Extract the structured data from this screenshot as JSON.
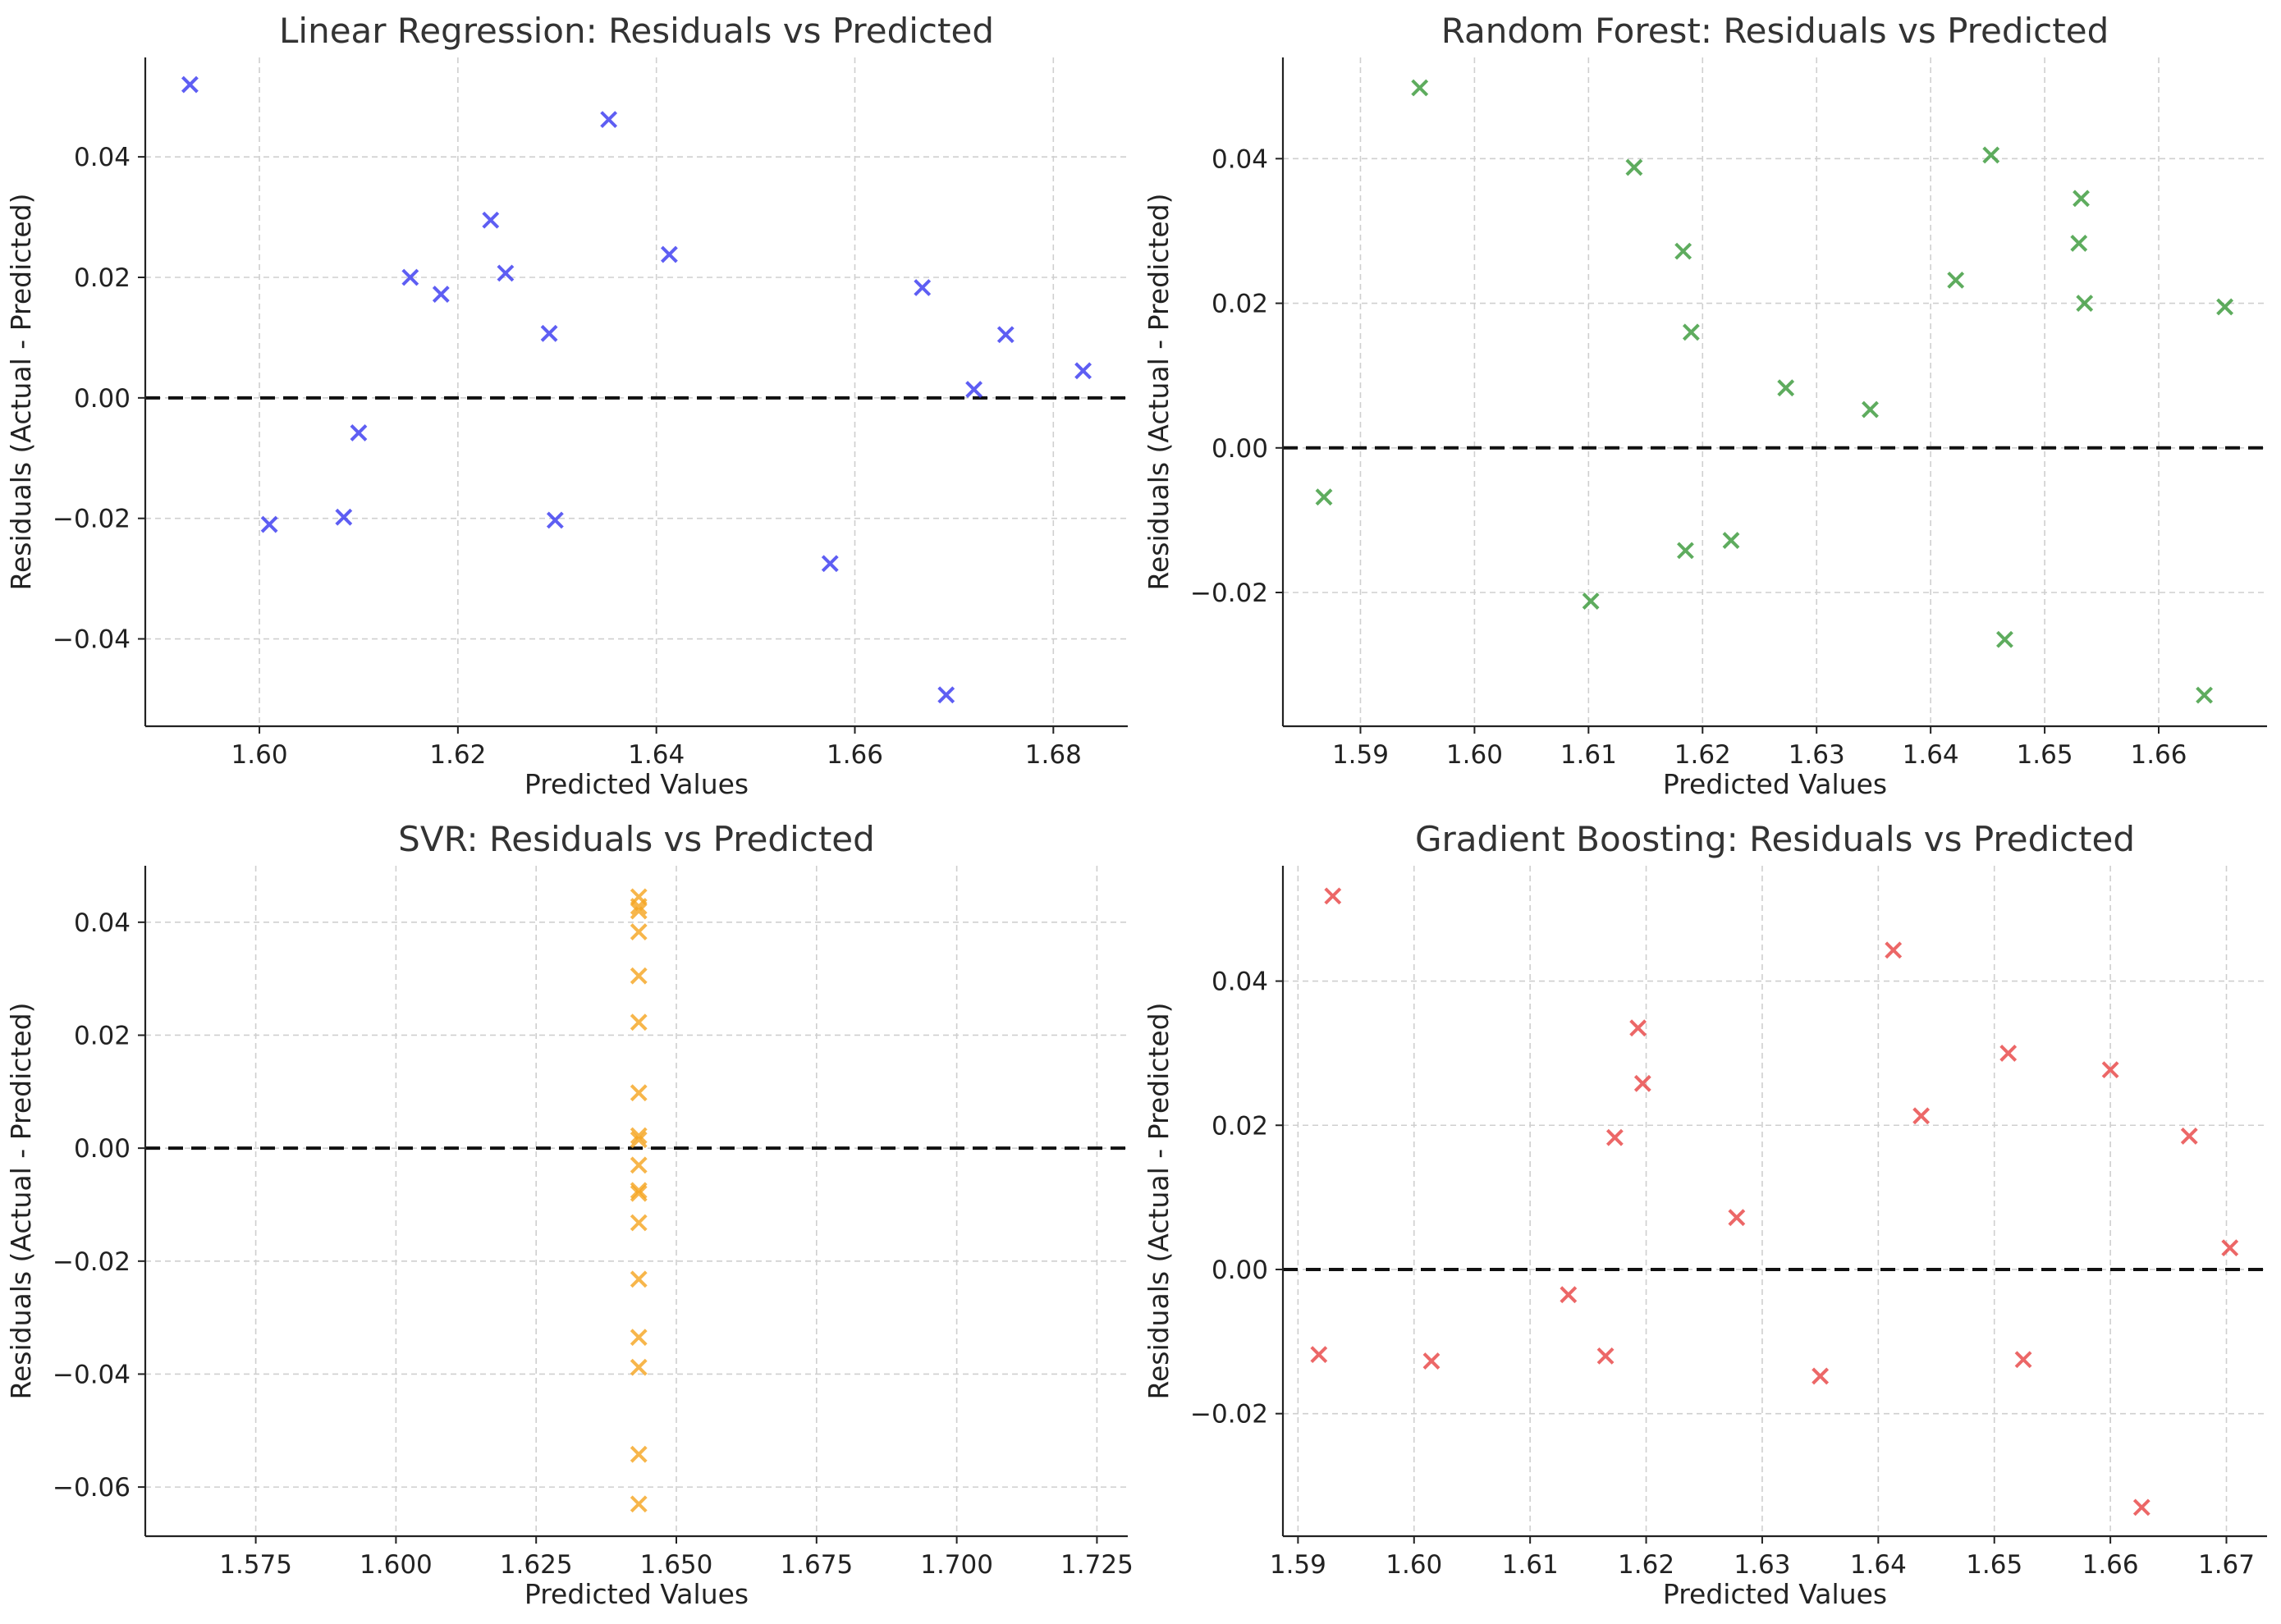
{
  "chart_data": [
    {
      "type": "scatter",
      "title": "Linear Regression: Residuals vs Predicted",
      "xlabel": "Predicted Values",
      "ylabel": "Residuals (Actual - Predicted)",
      "xlim": [
        1.5885,
        1.6875
      ],
      "ylim": [
        -0.0545,
        0.0565
      ],
      "xticks": [
        "1.60",
        "1.62",
        "1.64",
        "1.66",
        "1.68"
      ],
      "yticks": [
        "−0.04",
        "−0.02",
        "0.00",
        "0.02",
        "0.04"
      ],
      "grid": true,
      "color": "#3b3bf0",
      "marker": "x",
      "reference_line": 0,
      "points": [
        [
          1.593,
          0.052
        ],
        [
          1.601,
          -0.021
        ],
        [
          1.6085,
          -0.0198
        ],
        [
          1.61,
          -0.0058
        ],
        [
          1.6152,
          0.02
        ],
        [
          1.6183,
          0.0172
        ],
        [
          1.6233,
          0.0295
        ],
        [
          1.6248,
          0.0207
        ],
        [
          1.6292,
          0.0107
        ],
        [
          1.6298,
          -0.0203
        ],
        [
          1.6352,
          0.0462
        ],
        [
          1.6413,
          0.0238
        ],
        [
          1.6575,
          -0.0275
        ],
        [
          1.6668,
          0.0183
        ],
        [
          1.6692,
          -0.0493
        ],
        [
          1.672,
          0.0014
        ],
        [
          1.6752,
          0.0105
        ],
        [
          1.683,
          0.0045
        ]
      ]
    },
    {
      "type": "scatter",
      "title": "Random Forest: Residuals vs Predicted",
      "xlabel": "Predicted Values",
      "ylabel": "Residuals (Actual - Predicted)",
      "xlim": [
        1.5832,
        1.6695
      ],
      "ylim": [
        -0.0385,
        0.054
      ],
      "xticks": [
        "1.59",
        "1.60",
        "1.61",
        "1.62",
        "1.63",
        "1.64",
        "1.65",
        "1.66"
      ],
      "yticks": [
        "−0.02",
        "0.00",
        "0.02",
        "0.04"
      ],
      "grid": true,
      "color": "#3a9a3a",
      "marker": "x",
      "reference_line": 0,
      "points": [
        [
          1.5868,
          -0.0068
        ],
        [
          1.5952,
          0.0498
        ],
        [
          1.6102,
          -0.0212
        ],
        [
          1.614,
          0.0388
        ],
        [
          1.6183,
          0.0272
        ],
        [
          1.6185,
          -0.0142
        ],
        [
          1.619,
          0.016
        ],
        [
          1.6225,
          -0.0128
        ],
        [
          1.6273,
          0.0083
        ],
        [
          1.6347,
          0.0053
        ],
        [
          1.6422,
          0.0232
        ],
        [
          1.6453,
          0.0405
        ],
        [
          1.6465,
          -0.0265
        ],
        [
          1.653,
          0.0283
        ],
        [
          1.6532,
          0.0345
        ],
        [
          1.6535,
          0.02
        ],
        [
          1.664,
          -0.0342
        ],
        [
          1.6658,
          0.0195
        ]
      ]
    },
    {
      "type": "scatter",
      "title": "SVR: Residuals vs Predicted",
      "xlabel": "Predicted Values",
      "ylabel": "Residuals (Actual - Predicted)",
      "xlim": [
        1.5553,
        1.7305
      ],
      "ylim": [
        -0.0687,
        0.05
      ],
      "xticks": [
        "1.575",
        "1.600",
        "1.625",
        "1.650",
        "1.675",
        "1.700",
        "1.725"
      ],
      "yticks": [
        "−0.06",
        "−0.04",
        "−0.02",
        "0.00",
        "0.02",
        "0.04"
      ],
      "grid": true,
      "color": "#f5a623",
      "marker": "x",
      "reference_line": 0,
      "points": [
        [
          1.6433,
          0.0445
        ],
        [
          1.6433,
          0.0428
        ],
        [
          1.6433,
          0.042
        ],
        [
          1.6433,
          0.0383
        ],
        [
          1.6433,
          0.0305
        ],
        [
          1.6433,
          0.0223
        ],
        [
          1.6433,
          0.0098
        ],
        [
          1.6433,
          0.0022
        ],
        [
          1.6433,
          0.0015
        ],
        [
          1.6433,
          -0.003
        ],
        [
          1.6433,
          -0.0075
        ],
        [
          1.6433,
          -0.008
        ],
        [
          1.6433,
          -0.0132
        ],
        [
          1.6433,
          -0.0232
        ],
        [
          1.6433,
          -0.0335
        ],
        [
          1.6433,
          -0.0388
        ],
        [
          1.6433,
          -0.0542
        ],
        [
          1.6433,
          -0.063
        ]
      ]
    },
    {
      "type": "scatter",
      "title": "Gradient Boosting: Residuals vs Predicted",
      "xlabel": "Predicted Values",
      "ylabel": "Residuals (Actual - Predicted)",
      "xlim": [
        1.5887,
        1.6735
      ],
      "ylim": [
        -0.037,
        0.056
      ],
      "xticks": [
        "1.59",
        "1.60",
        "1.61",
        "1.62",
        "1.63",
        "1.64",
        "1.65",
        "1.66",
        "1.67"
      ],
      "yticks": [
        "−0.02",
        "0.00",
        "0.02",
        "0.04"
      ],
      "grid": true,
      "color": "#e84545",
      "marker": "x",
      "reference_line": 0,
      "points": [
        [
          1.5918,
          -0.0118
        ],
        [
          1.593,
          0.0518
        ],
        [
          1.6015,
          -0.0127
        ],
        [
          1.6133,
          -0.0035
        ],
        [
          1.6165,
          -0.012
        ],
        [
          1.6173,
          0.0183
        ],
        [
          1.6193,
          0.0335
        ],
        [
          1.6197,
          0.0258
        ],
        [
          1.6278,
          0.0072
        ],
        [
          1.635,
          -0.0148
        ],
        [
          1.6413,
          0.0443
        ],
        [
          1.6437,
          0.0213
        ],
        [
          1.6512,
          0.03
        ],
        [
          1.6525,
          -0.0125
        ],
        [
          1.66,
          0.0277
        ],
        [
          1.6627,
          -0.033
        ],
        [
          1.6668,
          0.0185
        ],
        [
          1.6703,
          0.003
        ]
      ]
    }
  ]
}
